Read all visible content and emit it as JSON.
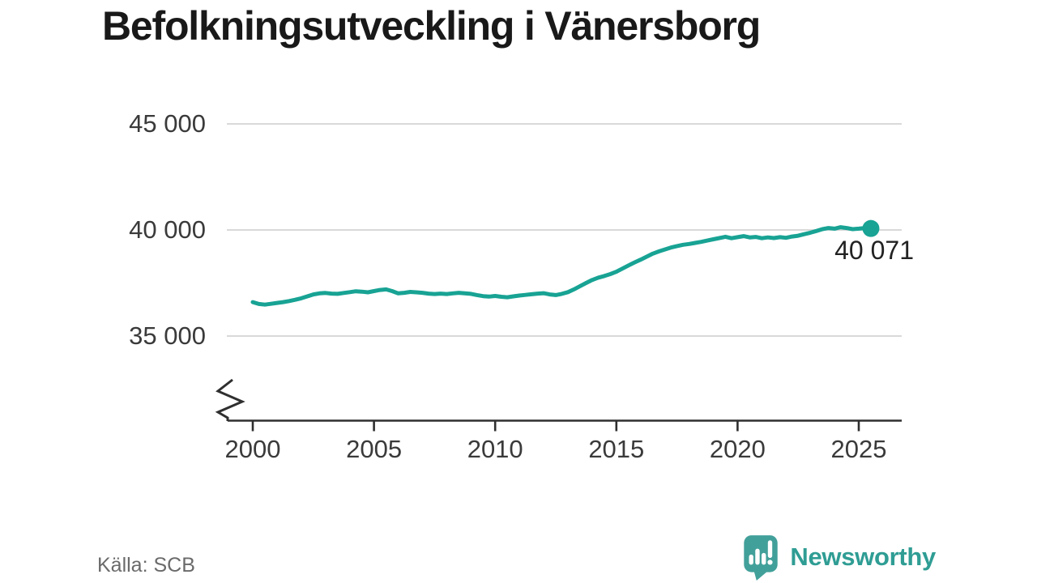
{
  "title": "Befolkningsutveckling i Vänersborg",
  "source": "Källa: SCB",
  "brand": {
    "name": "Newsworthy"
  },
  "annotation": {
    "last_value_label": "40 071"
  },
  "colors": {
    "background": "#ffffff",
    "line": "#18a394",
    "grid": "#d9d9d9",
    "axis": "#2f2f2f",
    "tick_text": "#3a3a3a",
    "title_text": "#191919",
    "value_text": "#222222",
    "source_text": "#6a6a6a",
    "brand_text": "#2f9d94",
    "brand_icon": "#42a09a"
  },
  "chart_data": {
    "type": "line",
    "title": "Befolkningsutveckling i Vänersborg",
    "xlabel": "",
    "ylabel": "",
    "grid": "horizontal",
    "legend": "none",
    "axis_break_at_bottom": true,
    "ylim": [
      35000,
      45000
    ],
    "x_start": 2000,
    "x_step": 0.25,
    "x_end": 2025.5,
    "values": [
      36600,
      36510,
      36480,
      36520,
      36560,
      36600,
      36650,
      36710,
      36780,
      36870,
      36960,
      37010,
      37030,
      37000,
      36990,
      37030,
      37070,
      37110,
      37090,
      37060,
      37120,
      37170,
      37200,
      37120,
      37010,
      37040,
      37080,
      37060,
      37040,
      37000,
      36980,
      37000,
      36980,
      37010,
      37040,
      37010,
      36990,
      36930,
      36880,
      36860,
      36890,
      36850,
      36830,
      36870,
      36910,
      36940,
      36970,
      37000,
      37020,
      36960,
      36930,
      36990,
      37070,
      37200,
      37350,
      37500,
      37640,
      37750,
      37830,
      37920,
      38030,
      38180,
      38330,
      38470,
      38600,
      38740,
      38880,
      38990,
      39080,
      39170,
      39240,
      39300,
      39340,
      39390,
      39440,
      39500,
      39560,
      39620,
      39680,
      39610,
      39660,
      39710,
      39650,
      39670,
      39610,
      39650,
      39620,
      39660,
      39630,
      39690,
      39730,
      39800,
      39870,
      39950,
      40040,
      40090,
      40060,
      40130,
      40090,
      40040,
      40060,
      40090,
      40071
    ],
    "x_ticks": [
      {
        "value": 2000,
        "label": "2000"
      },
      {
        "value": 2005,
        "label": "2005"
      },
      {
        "value": 2010,
        "label": "2010"
      },
      {
        "value": 2015,
        "label": "2015"
      },
      {
        "value": 2020,
        "label": "2020"
      },
      {
        "value": 2025,
        "label": "2025"
      }
    ],
    "y_ticks": [
      {
        "value": 35000,
        "label": "35 000"
      },
      {
        "value": 40000,
        "label": "40 000"
      },
      {
        "value": 45000,
        "label": "45 000"
      }
    ],
    "last_point": {
      "x": 2025.5,
      "value": 40071,
      "label": "40 071"
    }
  }
}
